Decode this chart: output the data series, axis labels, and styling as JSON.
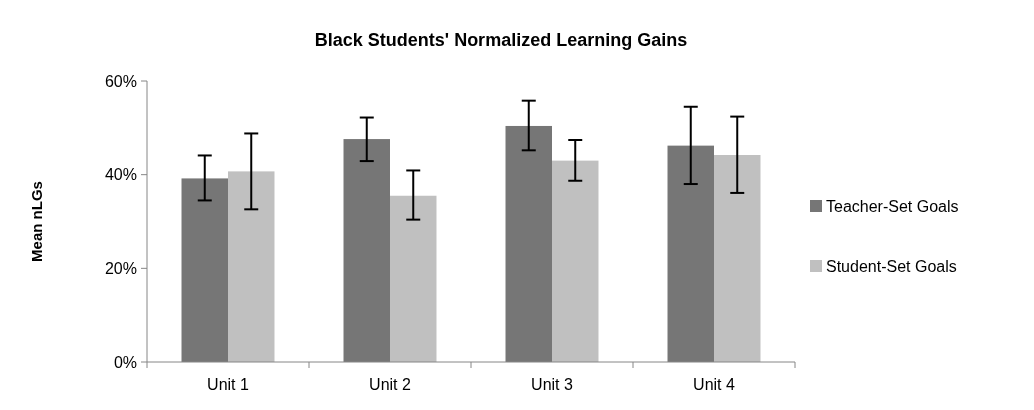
{
  "chart_data": {
    "type": "bar",
    "title": "Black Students' Normalized Learning Gains",
    "ylabel": "Mean nLGs",
    "categories": [
      "Unit 1",
      "Unit 2",
      "Unit 3",
      "Unit 4"
    ],
    "series": [
      {
        "name": "Teacher-Set Goals",
        "color": "#767676",
        "values": [
          39.2,
          47.6,
          50.4,
          46.2
        ],
        "errors": [
          [
            34.5,
            44.1
          ],
          [
            42.9,
            52.2
          ],
          [
            45.2,
            55.8
          ],
          [
            38.0,
            54.5
          ]
        ]
      },
      {
        "name": "Student-Set Goals",
        "color": "#c0c0c0",
        "values": [
          40.7,
          35.5,
          43.0,
          44.2
        ],
        "errors": [
          [
            32.6,
            48.8
          ],
          [
            30.4,
            40.9
          ],
          [
            38.7,
            47.4
          ],
          [
            36.1,
            52.4
          ]
        ]
      }
    ],
    "ylim": [
      0,
      60
    ],
    "yticks": [
      {
        "value": 0,
        "label": "0%"
      },
      {
        "value": 20,
        "label": "20%"
      },
      {
        "value": 40,
        "label": "40%"
      },
      {
        "value": 60,
        "label": "60%"
      }
    ],
    "legend": "right",
    "grid": false
  }
}
